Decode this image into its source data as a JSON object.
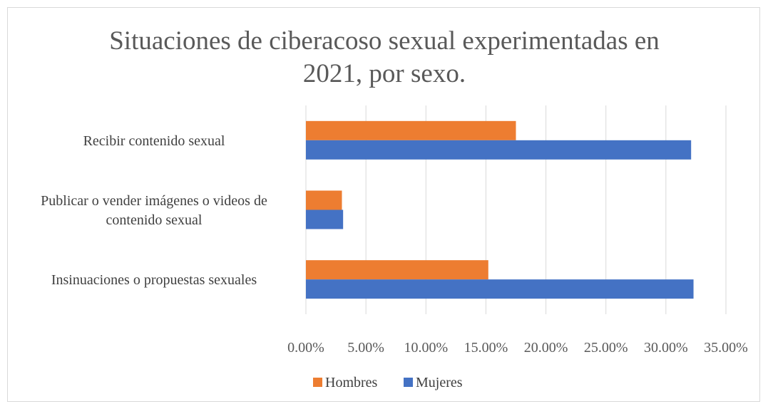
{
  "chart_data": {
    "type": "bar",
    "orientation": "horizontal",
    "title": "Situaciones de ciberacoso sexual experimentadas en 2021, por sexo.",
    "title_lines": [
      "Situaciones de ciberacoso sexual experimentadas en",
      "2021, por sexo."
    ],
    "categories": [
      "Recibir contenido sexual",
      "Publicar o vender imágenes o videos de contenido sexual",
      "Insinuaciones o propuestas sexuales"
    ],
    "category_lines": [
      [
        "Recibir contenido sexual"
      ],
      [
        "Publicar o vender imágenes o videos de",
        "contenido sexual"
      ],
      [
        "Insinuaciones o propuestas sexuales"
      ]
    ],
    "series": [
      {
        "name": "Hombres",
        "color": "#ED7D31",
        "values": [
          17.5,
          3.0,
          15.2
        ]
      },
      {
        "name": "Mujeres",
        "color": "#4472C4",
        "values": [
          32.1,
          3.1,
          32.3
        ]
      }
    ],
    "xlim": [
      0,
      35
    ],
    "xticks": [
      "0.00%",
      "5.00%",
      "10.00%",
      "15.00%",
      "20.00%",
      "25.00%",
      "30.00%",
      "35.00%"
    ],
    "xtick_values": [
      0,
      5,
      10,
      15,
      20,
      25,
      30,
      35
    ],
    "xlabel": "",
    "ylabel": "",
    "grid": true,
    "gridline_color": "#d9d9d9",
    "legend_position": "bottom"
  }
}
